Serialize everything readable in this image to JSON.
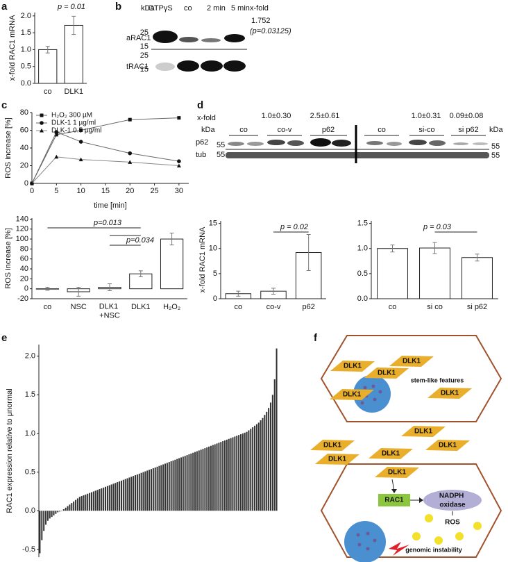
{
  "panel_labels": [
    "a",
    "b",
    "c",
    "d",
    "e",
    "f"
  ],
  "chart_data": [
    {
      "type": "bar",
      "ylabel": "x-fold RAC1 mRNA",
      "categories": [
        "co",
        "DLK1"
      ],
      "values": [
        1.0,
        1.72
      ],
      "errors": [
        0.1,
        0.27
      ],
      "color": "#ffffff",
      "ylim": [
        0,
        2.1
      ],
      "yticks": [
        {
          "value": 0,
          "label": "0.0"
        },
        0.5,
        {
          "value": 1,
          "label": "1.0"
        },
        1.5,
        {
          "value": 2,
          "label": "2.0"
        }
      ],
      "annotations": [
        "p = 0.01"
      ]
    },
    {
      "type": "line",
      "ylabel": "ROS increase [%]",
      "xlabel": "time [min]",
      "x": [
        0,
        5,
        10,
        20,
        30
      ],
      "series": [
        {
          "name": "H₂O₂ 300 µM",
          "color": "#666666",
          "marker": "square",
          "values": [
            0,
            55,
            60,
            72,
            74
          ]
        },
        {
          "name": "DLK-1 1 µg/ml",
          "color": "#666666",
          "marker": "circle",
          "values": [
            0,
            58,
            47,
            34,
            25
          ]
        },
        {
          "name": "DLK-1 0.5 µg/ml",
          "color": "#888888",
          "marker": "triangle",
          "values": [
            0,
            30,
            27,
            24,
            20
          ]
        }
      ],
      "xlim": [
        0,
        32
      ],
      "xticks": [
        0,
        5,
        10,
        15,
        20,
        25,
        30
      ],
      "ylim": [
        0,
        80
      ],
      "yticks": [
        0,
        20,
        40,
        60,
        80
      ]
    },
    {
      "type": "bar",
      "ylabel": "ROS increase [%]",
      "categories": [
        "co",
        "NSC",
        "DLK1 +NSC",
        "DLK1",
        "H₂O₂"
      ],
      "values": [
        0,
        -6,
        3,
        30,
        100
      ],
      "errors": [
        3,
        9,
        7,
        6,
        12
      ],
      "color": "#ffffff",
      "ylim": [
        -20,
        142
      ],
      "yticks": [
        -20,
        0,
        20,
        40,
        60,
        80,
        100,
        120,
        140
      ],
      "annotations": [
        "p=0.013",
        "p=0.034"
      ]
    },
    {
      "type": "bar",
      "ylabel": "x-fold RAC1 mRNA",
      "categories": [
        "co",
        "co-v",
        "p62"
      ],
      "values": [
        1.0,
        1.5,
        9.2
      ],
      "errors": [
        0.5,
        0.6,
        3.6
      ],
      "color": "#ffffff",
      "ylim": [
        0,
        15.5
      ],
      "yticks": [
        0,
        5,
        10,
        15
      ],
      "annotations": [
        "p = 0.02"
      ]
    },
    {
      "type": "bar",
      "categories": [
        "co",
        "si co",
        "si p62"
      ],
      "values": [
        1.0,
        1.01,
        0.82
      ],
      "errors": [
        0.07,
        0.11,
        0.07
      ],
      "color": "#ffffff",
      "ylim": [
        0,
        1.55
      ],
      "yticks": [
        {
          "value": 0,
          "label": "0.0"
        },
        0.5,
        {
          "value": 1,
          "label": "1.0"
        },
        1.5
      ],
      "annotations": [
        "p = 0.03"
      ]
    },
    {
      "type": "bar",
      "ylabel": "RAC1 expression relative to μnormal",
      "color": "#333333",
      "values": [
        -0.55,
        -0.38,
        -0.26,
        -0.18,
        -0.13,
        -0.1,
        -0.08,
        -0.06,
        -0.04,
        -0.02,
        -0.01,
        0.0,
        0.02,
        0.04,
        0.06,
        0.08,
        0.1,
        0.12,
        0.14,
        0.16,
        0.18,
        0.19,
        0.2,
        0.21,
        0.22,
        0.23,
        0.24,
        0.25,
        0.26,
        0.27,
        0.28,
        0.29,
        0.3,
        0.31,
        0.32,
        0.33,
        0.34,
        0.35,
        0.36,
        0.37,
        0.38,
        0.39,
        0.4,
        0.41,
        0.42,
        0.43,
        0.44,
        0.45,
        0.46,
        0.47,
        0.48,
        0.49,
        0.5,
        0.51,
        0.52,
        0.53,
        0.54,
        0.55,
        0.56,
        0.57,
        0.58,
        0.59,
        0.6,
        0.61,
        0.62,
        0.63,
        0.64,
        0.65,
        0.66,
        0.67,
        0.68,
        0.69,
        0.7,
        0.71,
        0.72,
        0.73,
        0.74,
        0.75,
        0.76,
        0.77,
        0.78,
        0.79,
        0.8,
        0.81,
        0.82,
        0.83,
        0.84,
        0.85,
        0.86,
        0.87,
        0.88,
        0.89,
        0.9,
        0.91,
        0.92,
        0.93,
        0.94,
        0.95,
        0.96,
        0.97,
        0.98,
        0.99,
        1.0,
        1.01,
        1.02,
        1.04,
        1.06,
        1.08,
        1.1,
        1.12,
        1.14,
        1.17,
        1.2,
        1.24,
        1.28,
        1.33,
        1.4,
        1.5,
        1.7,
        2.1
      ],
      "ylim": [
        -0.6,
        2.15
      ],
      "yticks": [
        -0.5,
        {
          "value": 0,
          "label": "0.0"
        },
        0.5,
        {
          "value": 1,
          "label": "1.0"
        },
        1.5,
        {
          "value": 2,
          "label": "2.0"
        }
      ]
    }
  ],
  "blot_b": {
    "kda": "kDa",
    "lanes": [
      "GTPγS",
      "co",
      "2 min",
      "5 min"
    ],
    "xfold": "x-fold",
    "xfold_value": "1.752",
    "p_value": "(p=0.03125)",
    "rows": [
      "aRAC1",
      "tRAC1"
    ],
    "markers": [
      "25",
      "15",
      "25",
      "15"
    ]
  },
  "blot_d": {
    "xfold": "x-fold",
    "xfold_values": [
      "1.0±0.30",
      "2.5±0.61",
      "1.0±0.31",
      "0.09±0.08"
    ],
    "kda_left": "kDa",
    "kda_right": "kDa",
    "groups": [
      "co",
      "co-v",
      "p62",
      "co",
      "si-co",
      "si p62"
    ],
    "rows": [
      "p62",
      "tub"
    ],
    "markers_left": [
      "55",
      "55"
    ],
    "markers_right": [
      "55",
      "55"
    ]
  },
  "diagram_f": {
    "dlk1_top": [
      "DLK1",
      "DLK1",
      "DLK1",
      "DLK1",
      "DLK1",
      "DLK1"
    ],
    "stem": "stem-like features",
    "dlk1_middle": [
      "DLK1",
      "DLK1",
      "DLK1",
      "DLK1",
      "DLK1"
    ],
    "rac1": "RAC1",
    "nadph": "NADPH oxidase",
    "ros": "ROS",
    "genomic": "genomic instability"
  }
}
